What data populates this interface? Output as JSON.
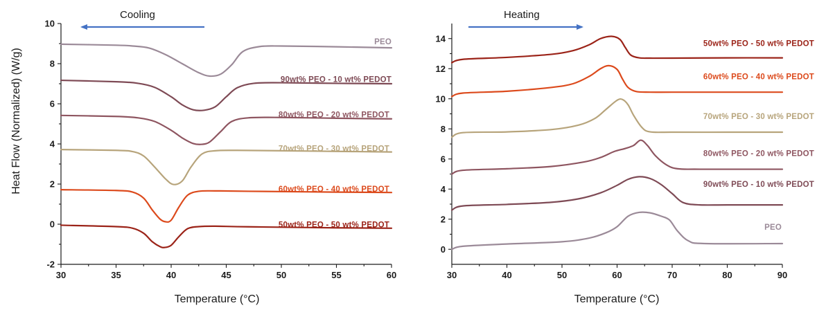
{
  "chart_data": [
    {
      "type": "line",
      "title": "",
      "direction_label": "Cooling",
      "direction_arrow": "left",
      "xlabel": "Temperature (°C)",
      "ylabel": "Heat Flow (Normalized) (W/g)",
      "xlim": [
        30,
        60
      ],
      "ylim": [
        -2,
        10
      ],
      "xticks": [
        30,
        35,
        40,
        45,
        50,
        55,
        60
      ],
      "yticks": [
        -2,
        0,
        2,
        4,
        6,
        8,
        10
      ],
      "grid": false,
      "series": [
        {
          "name": "PEO",
          "color": "#9b8a98",
          "x": [
            30,
            35,
            36.5,
            38,
            39.5,
            41,
            42.5,
            43.5,
            44.5,
            45.5,
            46.5,
            48,
            50,
            55,
            60
          ],
          "y": [
            8.97,
            8.92,
            8.88,
            8.78,
            8.45,
            8.0,
            7.55,
            7.38,
            7.48,
            7.95,
            8.6,
            8.85,
            8.88,
            8.84,
            8.79
          ]
        },
        {
          "name": "90wt% PEO - 10 wt% PEDOT",
          "color": "#7e4a55",
          "x": [
            30,
            35,
            37,
            38.5,
            40,
            41,
            42,
            43,
            44,
            45,
            46,
            47.5,
            50,
            55,
            60
          ],
          "y": [
            7.17,
            7.1,
            7.02,
            6.82,
            6.35,
            5.95,
            5.7,
            5.68,
            5.85,
            6.35,
            6.8,
            7.02,
            7.05,
            7.02,
            7.0
          ]
        },
        {
          "name": "80wt% PEO - 20 wt% PEDOT",
          "color": "#8e5560",
          "x": [
            30,
            35,
            37,
            38.5,
            40,
            41,
            42,
            42.8,
            43.5,
            44.5,
            45.5,
            47,
            50,
            55,
            60
          ],
          "y": [
            5.42,
            5.37,
            5.3,
            5.12,
            4.68,
            4.3,
            4.02,
            3.98,
            4.1,
            4.62,
            5.12,
            5.3,
            5.32,
            5.28,
            5.25
          ]
        },
        {
          "name": "70wt% PEO - 30 wt% PEDOT",
          "color": "#b7a47b",
          "x": [
            30,
            35,
            36.5,
            37.5,
            38.5,
            39.5,
            40.2,
            41,
            41.8,
            42.8,
            44,
            46,
            50,
            55,
            60
          ],
          "y": [
            3.72,
            3.68,
            3.62,
            3.4,
            2.85,
            2.25,
            1.98,
            2.15,
            2.85,
            3.5,
            3.66,
            3.68,
            3.66,
            3.63,
            3.6
          ]
        },
        {
          "name": "60wt% PEO - 40 wt% PEDOT",
          "color": "#dc4a1c",
          "x": [
            30,
            35,
            36.5,
            37.5,
            38.3,
            39,
            39.5,
            40,
            40.7,
            41.5,
            42.5,
            44,
            47,
            55,
            60
          ],
          "y": [
            1.72,
            1.68,
            1.6,
            1.3,
            0.7,
            0.25,
            0.12,
            0.2,
            0.85,
            1.45,
            1.64,
            1.66,
            1.64,
            1.6,
            1.58
          ]
        },
        {
          "name": "50wt% PEO - 50 wt% PEDOT",
          "color": "#9b2318",
          "x": [
            30,
            35,
            36.5,
            37.5,
            38.3,
            39,
            39.4,
            40,
            40.7,
            41.5,
            42.5,
            44,
            47,
            55,
            60
          ],
          "y": [
            -0.05,
            -0.12,
            -0.2,
            -0.45,
            -0.88,
            -1.12,
            -1.16,
            -1.05,
            -0.62,
            -0.22,
            -0.12,
            -0.1,
            -0.13,
            -0.18,
            -0.2
          ]
        }
      ]
    },
    {
      "type": "line",
      "title": "",
      "direction_label": "Heating",
      "direction_arrow": "right",
      "xlabel": "Temperature (°C)",
      "ylabel": "",
      "xlim": [
        30,
        90
      ],
      "ylim": [
        -1,
        15
      ],
      "xticks": [
        30,
        40,
        50,
        60,
        70,
        80,
        90
      ],
      "yticks": [
        0,
        2,
        4,
        6,
        8,
        10,
        12,
        14
      ],
      "grid": false,
      "series": [
        {
          "name": "50wt% PEO - 50 wt% PEDOT",
          "color": "#9b2318",
          "x": [
            30,
            32,
            40,
            48,
            52,
            55,
            57,
            59,
            60.5,
            61.5,
            62.5,
            64,
            66,
            70,
            80,
            90
          ],
          "y": [
            12.4,
            12.62,
            12.75,
            12.95,
            13.2,
            13.6,
            14.0,
            14.15,
            13.95,
            13.4,
            12.9,
            12.72,
            12.7,
            12.7,
            12.72,
            12.72
          ]
        },
        {
          "name": "60wt% PEO - 40 wt% PEDOT",
          "color": "#dc4a1c",
          "x": [
            30,
            32,
            40,
            48,
            52,
            55,
            57,
            58.5,
            60,
            61,
            62,
            63.5,
            66,
            70,
            80,
            90
          ],
          "y": [
            10.15,
            10.38,
            10.5,
            10.75,
            11.0,
            11.5,
            12.0,
            12.2,
            11.95,
            11.3,
            10.75,
            10.48,
            10.44,
            10.44,
            10.44,
            10.44
          ]
        },
        {
          "name": "70wt% PEO - 30 wt% PEDOT",
          "color": "#b7a47b",
          "x": [
            30,
            32,
            40,
            48,
            53,
            56,
            58,
            60,
            61,
            62,
            63,
            64.5,
            66,
            70,
            80,
            90
          ],
          "y": [
            7.45,
            7.75,
            7.8,
            7.95,
            8.25,
            8.7,
            9.3,
            9.9,
            9.95,
            9.6,
            8.9,
            8.1,
            7.8,
            7.78,
            7.78,
            7.78
          ]
        },
        {
          "name": "80wt% PEO - 20 wt% PEDOT",
          "color": "#8e5560",
          "x": [
            30,
            32,
            40,
            48,
            54,
            57,
            59.5,
            61.5,
            63,
            64.3,
            65.5,
            67,
            69,
            71,
            75,
            90
          ],
          "y": [
            5.0,
            5.25,
            5.35,
            5.5,
            5.8,
            6.1,
            6.5,
            6.7,
            6.9,
            7.25,
            6.9,
            6.2,
            5.6,
            5.35,
            5.32,
            5.32
          ]
        },
        {
          "name": "90wt% PEO - 10 wt% PEDOT",
          "color": "#7e4a55",
          "x": [
            30,
            32,
            40,
            48,
            53,
            57,
            60,
            62,
            64,
            66,
            68,
            70,
            72,
            75,
            80,
            90
          ],
          "y": [
            2.6,
            2.88,
            2.98,
            3.12,
            3.35,
            3.75,
            4.25,
            4.65,
            4.82,
            4.7,
            4.3,
            3.7,
            3.1,
            2.95,
            2.95,
            2.95
          ]
        },
        {
          "name": "PEO",
          "color": "#9b8a98",
          "x": [
            30,
            32,
            40,
            50,
            55,
            58,
            60,
            62,
            64,
            66,
            68,
            69.5,
            71,
            73,
            76,
            90
          ],
          "y": [
            0.0,
            0.2,
            0.35,
            0.5,
            0.75,
            1.1,
            1.5,
            2.2,
            2.45,
            2.42,
            2.2,
            1.95,
            1.2,
            0.55,
            0.38,
            0.38
          ]
        }
      ]
    }
  ]
}
